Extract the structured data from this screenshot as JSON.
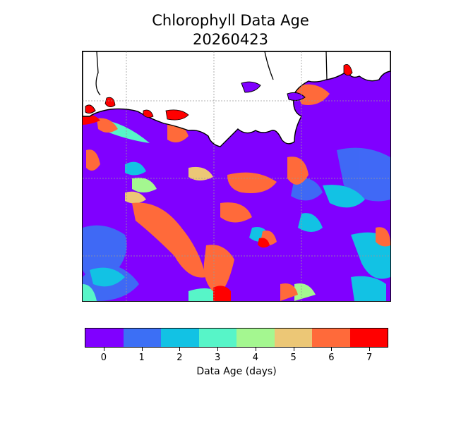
{
  "title": "Chlorophyll Data Age",
  "date": "20260423",
  "colorbar": {
    "label": "Data Age (days)",
    "ticks": [
      "0",
      "1",
      "2",
      "3",
      "4",
      "5",
      "6",
      "7"
    ],
    "colors": [
      "#8000ff",
      "#3c6ff5",
      "#12c2e4",
      "#57f5c8",
      "#a4f790",
      "#ecc776",
      "#ff6a3a",
      "#ff0000"
    ]
  },
  "map": {
    "background_color": "#8000ff",
    "land_color": "#ffffff",
    "coastline_color": "#000000",
    "gridlines": "dotted"
  }
}
